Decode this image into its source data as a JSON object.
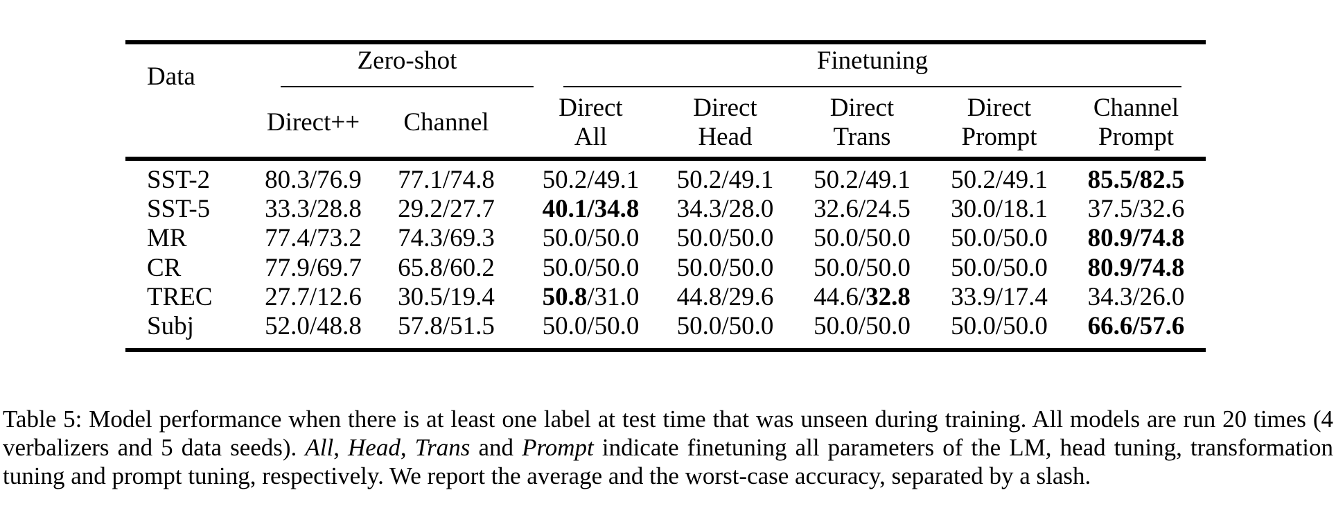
{
  "table": {
    "corner_label": "Data",
    "groups": [
      {
        "label": "Zero-shot"
      },
      {
        "label": "Finetuning"
      }
    ],
    "columns": [
      {
        "lines": [
          "Direct++"
        ]
      },
      {
        "lines": [
          "Channel"
        ]
      },
      {
        "lines": [
          "Direct",
          "All"
        ]
      },
      {
        "lines": [
          "Direct",
          "Head"
        ]
      },
      {
        "lines": [
          "Direct",
          "Trans"
        ]
      },
      {
        "lines": [
          "Direct",
          "Prompt"
        ]
      },
      {
        "lines": [
          "Channel",
          "Prompt"
        ]
      }
    ],
    "rows": [
      {
        "label": "SST-2",
        "cells": [
          [
            [
              "80.3/76.9",
              0
            ]
          ],
          [
            [
              "77.1/74.8",
              0
            ]
          ],
          [
            [
              "50.2/49.1",
              0
            ]
          ],
          [
            [
              "50.2/49.1",
              0
            ]
          ],
          [
            [
              "50.2/49.1",
              0
            ]
          ],
          [
            [
              "50.2/49.1",
              0
            ]
          ],
          [
            [
              "85.5/82.5",
              1
            ]
          ]
        ]
      },
      {
        "label": "SST-5",
        "cells": [
          [
            [
              "33.3/28.8",
              0
            ]
          ],
          [
            [
              "29.2/27.7",
              0
            ]
          ],
          [
            [
              "40.1/34.8",
              1
            ]
          ],
          [
            [
              "34.3/28.0",
              0
            ]
          ],
          [
            [
              "32.6/24.5",
              0
            ]
          ],
          [
            [
              "30.0/18.1",
              0
            ]
          ],
          [
            [
              "37.5/32.6",
              0
            ]
          ]
        ]
      },
      {
        "label": "MR",
        "cells": [
          [
            [
              "77.4/73.2",
              0
            ]
          ],
          [
            [
              "74.3/69.3",
              0
            ]
          ],
          [
            [
              "50.0/50.0",
              0
            ]
          ],
          [
            [
              "50.0/50.0",
              0
            ]
          ],
          [
            [
              "50.0/50.0",
              0
            ]
          ],
          [
            [
              "50.0/50.0",
              0
            ]
          ],
          [
            [
              "80.9/74.8",
              1
            ]
          ]
        ]
      },
      {
        "label": "CR",
        "cells": [
          [
            [
              "77.9/69.7",
              0
            ]
          ],
          [
            [
              "65.8/60.2",
              0
            ]
          ],
          [
            [
              "50.0/50.0",
              0
            ]
          ],
          [
            [
              "50.0/50.0",
              0
            ]
          ],
          [
            [
              "50.0/50.0",
              0
            ]
          ],
          [
            [
              "50.0/50.0",
              0
            ]
          ],
          [
            [
              "80.9/74.8",
              1
            ]
          ]
        ]
      },
      {
        "label": "TREC",
        "cells": [
          [
            [
              "27.7/12.6",
              0
            ]
          ],
          [
            [
              "30.5/19.4",
              0
            ]
          ],
          [
            [
              "50.8",
              1
            ],
            [
              "/31.0",
              0
            ]
          ],
          [
            [
              "44.8/29.6",
              0
            ]
          ],
          [
            [
              "44.6/",
              0
            ],
            [
              "32.8",
              1
            ]
          ],
          [
            [
              "33.9/17.4",
              0
            ]
          ],
          [
            [
              "34.3/26.0",
              0
            ]
          ]
        ]
      },
      {
        "label": "Subj",
        "cells": [
          [
            [
              "52.0/48.8",
              0
            ]
          ],
          [
            [
              "57.8/51.5",
              0
            ]
          ],
          [
            [
              "50.0/50.0",
              0
            ]
          ],
          [
            [
              "50.0/50.0",
              0
            ]
          ],
          [
            [
              "50.0/50.0",
              0
            ]
          ],
          [
            [
              "50.0/50.0",
              0
            ]
          ],
          [
            [
              "66.6/57.6",
              1
            ]
          ]
        ]
      }
    ]
  },
  "caption": {
    "segments": [
      {
        "text": "Table 5: Model performance when there is at least one label at test time that was unseen during training. All models are run 20 times (4 verbalizers and 5 data seeds). ",
        "italic": false
      },
      {
        "text": "All",
        "italic": true
      },
      {
        "text": ", ",
        "italic": false
      },
      {
        "text": "Head",
        "italic": true
      },
      {
        "text": ", ",
        "italic": false
      },
      {
        "text": "Trans",
        "italic": true
      },
      {
        "text": " and ",
        "italic": false
      },
      {
        "text": "Prompt",
        "italic": true
      },
      {
        "text": " indicate finetuning all parameters of the LM, head tuning, transformation tuning and prompt tuning, respectively. We report the average and the worst-case accuracy, separated by a slash.",
        "italic": false
      }
    ]
  }
}
